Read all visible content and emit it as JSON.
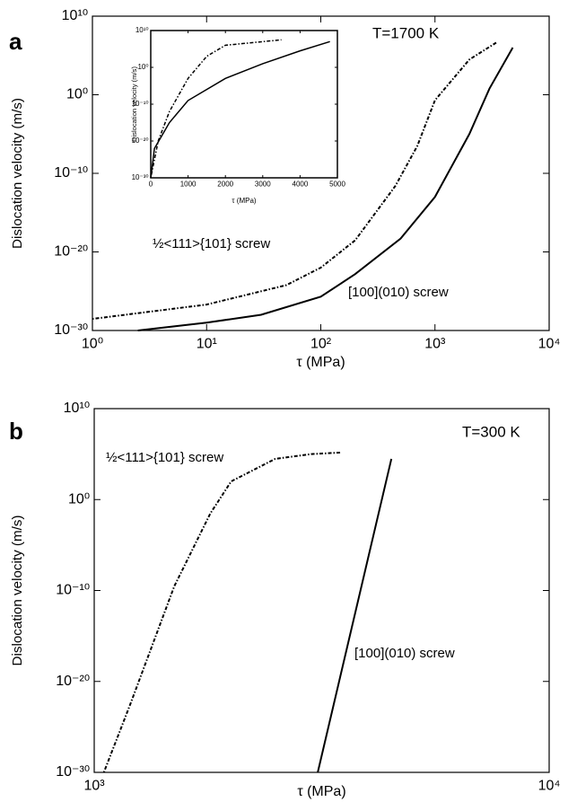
{
  "chart_data": [
    {
      "type": "line",
      "panel_label": "a",
      "annotation": "T=1700 K",
      "x_label": "τ (MPa)",
      "y_label": "Dislocation velocity (m/s)",
      "xscale": "log",
      "yscale": "log",
      "xlim": [
        1,
        10000
      ],
      "ylim": [
        1e-30,
        10000000000.0
      ],
      "xticks": [
        {
          "value": 1,
          "label": "10⁰"
        },
        {
          "value": 10,
          "label": "10¹"
        },
        {
          "value": 100,
          "label": "10²"
        },
        {
          "value": 1000,
          "label": "10³"
        },
        {
          "value": 10000,
          "label": "10⁴"
        }
      ],
      "yticks": [
        {
          "value": 1e-30,
          "label": "10⁻³⁰"
        },
        {
          "value": 1e-20,
          "label": "10⁻²⁰"
        },
        {
          "value": 1e-10,
          "label": "10⁻¹⁰"
        },
        {
          "value": 1,
          "label": "10⁰"
        },
        {
          "value": 10000000000.0,
          "label": "10¹⁰"
        }
      ],
      "series": [
        {
          "name": "½<111>{101} screw",
          "color": "#000",
          "line_style": "dashdot",
          "x": [
            1,
            10,
            50,
            100,
            200,
            450,
            700,
            1000,
            2000,
            3500
          ],
          "values": [
            3e-29,
            2e-27,
            6e-25,
            1e-22,
            3e-19,
            2.5e-12,
            3e-07,
            0.2,
            30000,
            5000000
          ]
        },
        {
          "name": "[100](010) screw",
          "color": "#000",
          "line_style": "solid",
          "x": [
            2.5,
            10,
            30,
            100,
            200,
            500,
            1000,
            2000,
            3000,
            4800
          ],
          "values": [
            1e-30,
            1e-29,
            1e-28,
            2e-26,
            1.5e-23,
            5e-19,
            1e-13,
            1e-05,
            6,
            1000000
          ]
        }
      ]
    },
    {
      "type": "line",
      "x_label": "τ (MPa)",
      "y_label": "Dislocation velocity (m/s)",
      "xscale": "linear",
      "yscale": "log",
      "xlim": [
        0,
        5000
      ],
      "ylim": [
        1e-30,
        10000000000.0
      ],
      "xticks": [
        0,
        1000,
        2000,
        3000,
        4000,
        5000
      ],
      "yticks": [
        {
          "value": 1e-30,
          "label": "10⁻³⁰"
        },
        {
          "value": 1e-20,
          "label": "10⁻²⁰"
        },
        {
          "value": 1e-10,
          "label": "10⁻¹⁰"
        },
        {
          "value": 1,
          "label": "10⁰"
        },
        {
          "value": 10000000000.0,
          "label": "10¹⁰"
        }
      ],
      "series": [
        {
          "color": "#000",
          "line_style": "dashdot",
          "x": [
            0,
            200,
            500,
            1000,
            1500,
            2000,
            3500
          ],
          "values": [
            1e-30,
            1e-20,
            1e-12,
            0.001,
            1000,
            1000000,
            30000000
          ]
        },
        {
          "color": "#000",
          "line_style": "solid",
          "x": [
            0,
            100,
            500,
            1000,
            2000,
            3000,
            4000,
            4800
          ],
          "values": [
            1e-30,
            1e-22,
            1e-15,
            1e-09,
            0.001,
            10,
            30000,
            10000000
          ]
        }
      ]
    },
    {
      "type": "line",
      "panel_label": "b",
      "annotation": "T=300 K",
      "x_label": "τ (MPa)",
      "y_label": "Dislocation velocity (m/s)",
      "xscale": "log",
      "yscale": "log",
      "xlim": [
        1000,
        10000
      ],
      "ylim": [
        1e-30,
        10000000000.0
      ],
      "xticks": [
        {
          "value": 1000,
          "label": "10³"
        },
        {
          "value": 10000,
          "label": "10⁴"
        }
      ],
      "yticks": [
        {
          "value": 1e-30,
          "label": "10⁻³⁰"
        },
        {
          "value": 1e-20,
          "label": "10⁻²⁰"
        },
        {
          "value": 1e-10,
          "label": "10⁻¹⁰"
        },
        {
          "value": 1,
          "label": "10⁰"
        },
        {
          "value": 10000000000.0,
          "label": "10¹⁰"
        }
      ],
      "series": [
        {
          "name": "½<111>{101} screw",
          "color": "#000",
          "line_style": "dashdot",
          "x": [
            1050,
            1200,
            1500,
            1800,
            2000,
            2500,
            3000,
            3500
          ],
          "values": [
            1e-30,
            3e-23,
            3e-10,
            0.03,
            100,
            30000,
            100000,
            150000
          ]
        },
        {
          "name": "[100](010) screw",
          "color": "#000",
          "line_style": "solid",
          "x": [
            3100,
            4500
          ],
          "values": [
            1e-30,
            30000
          ]
        }
      ]
    }
  ]
}
